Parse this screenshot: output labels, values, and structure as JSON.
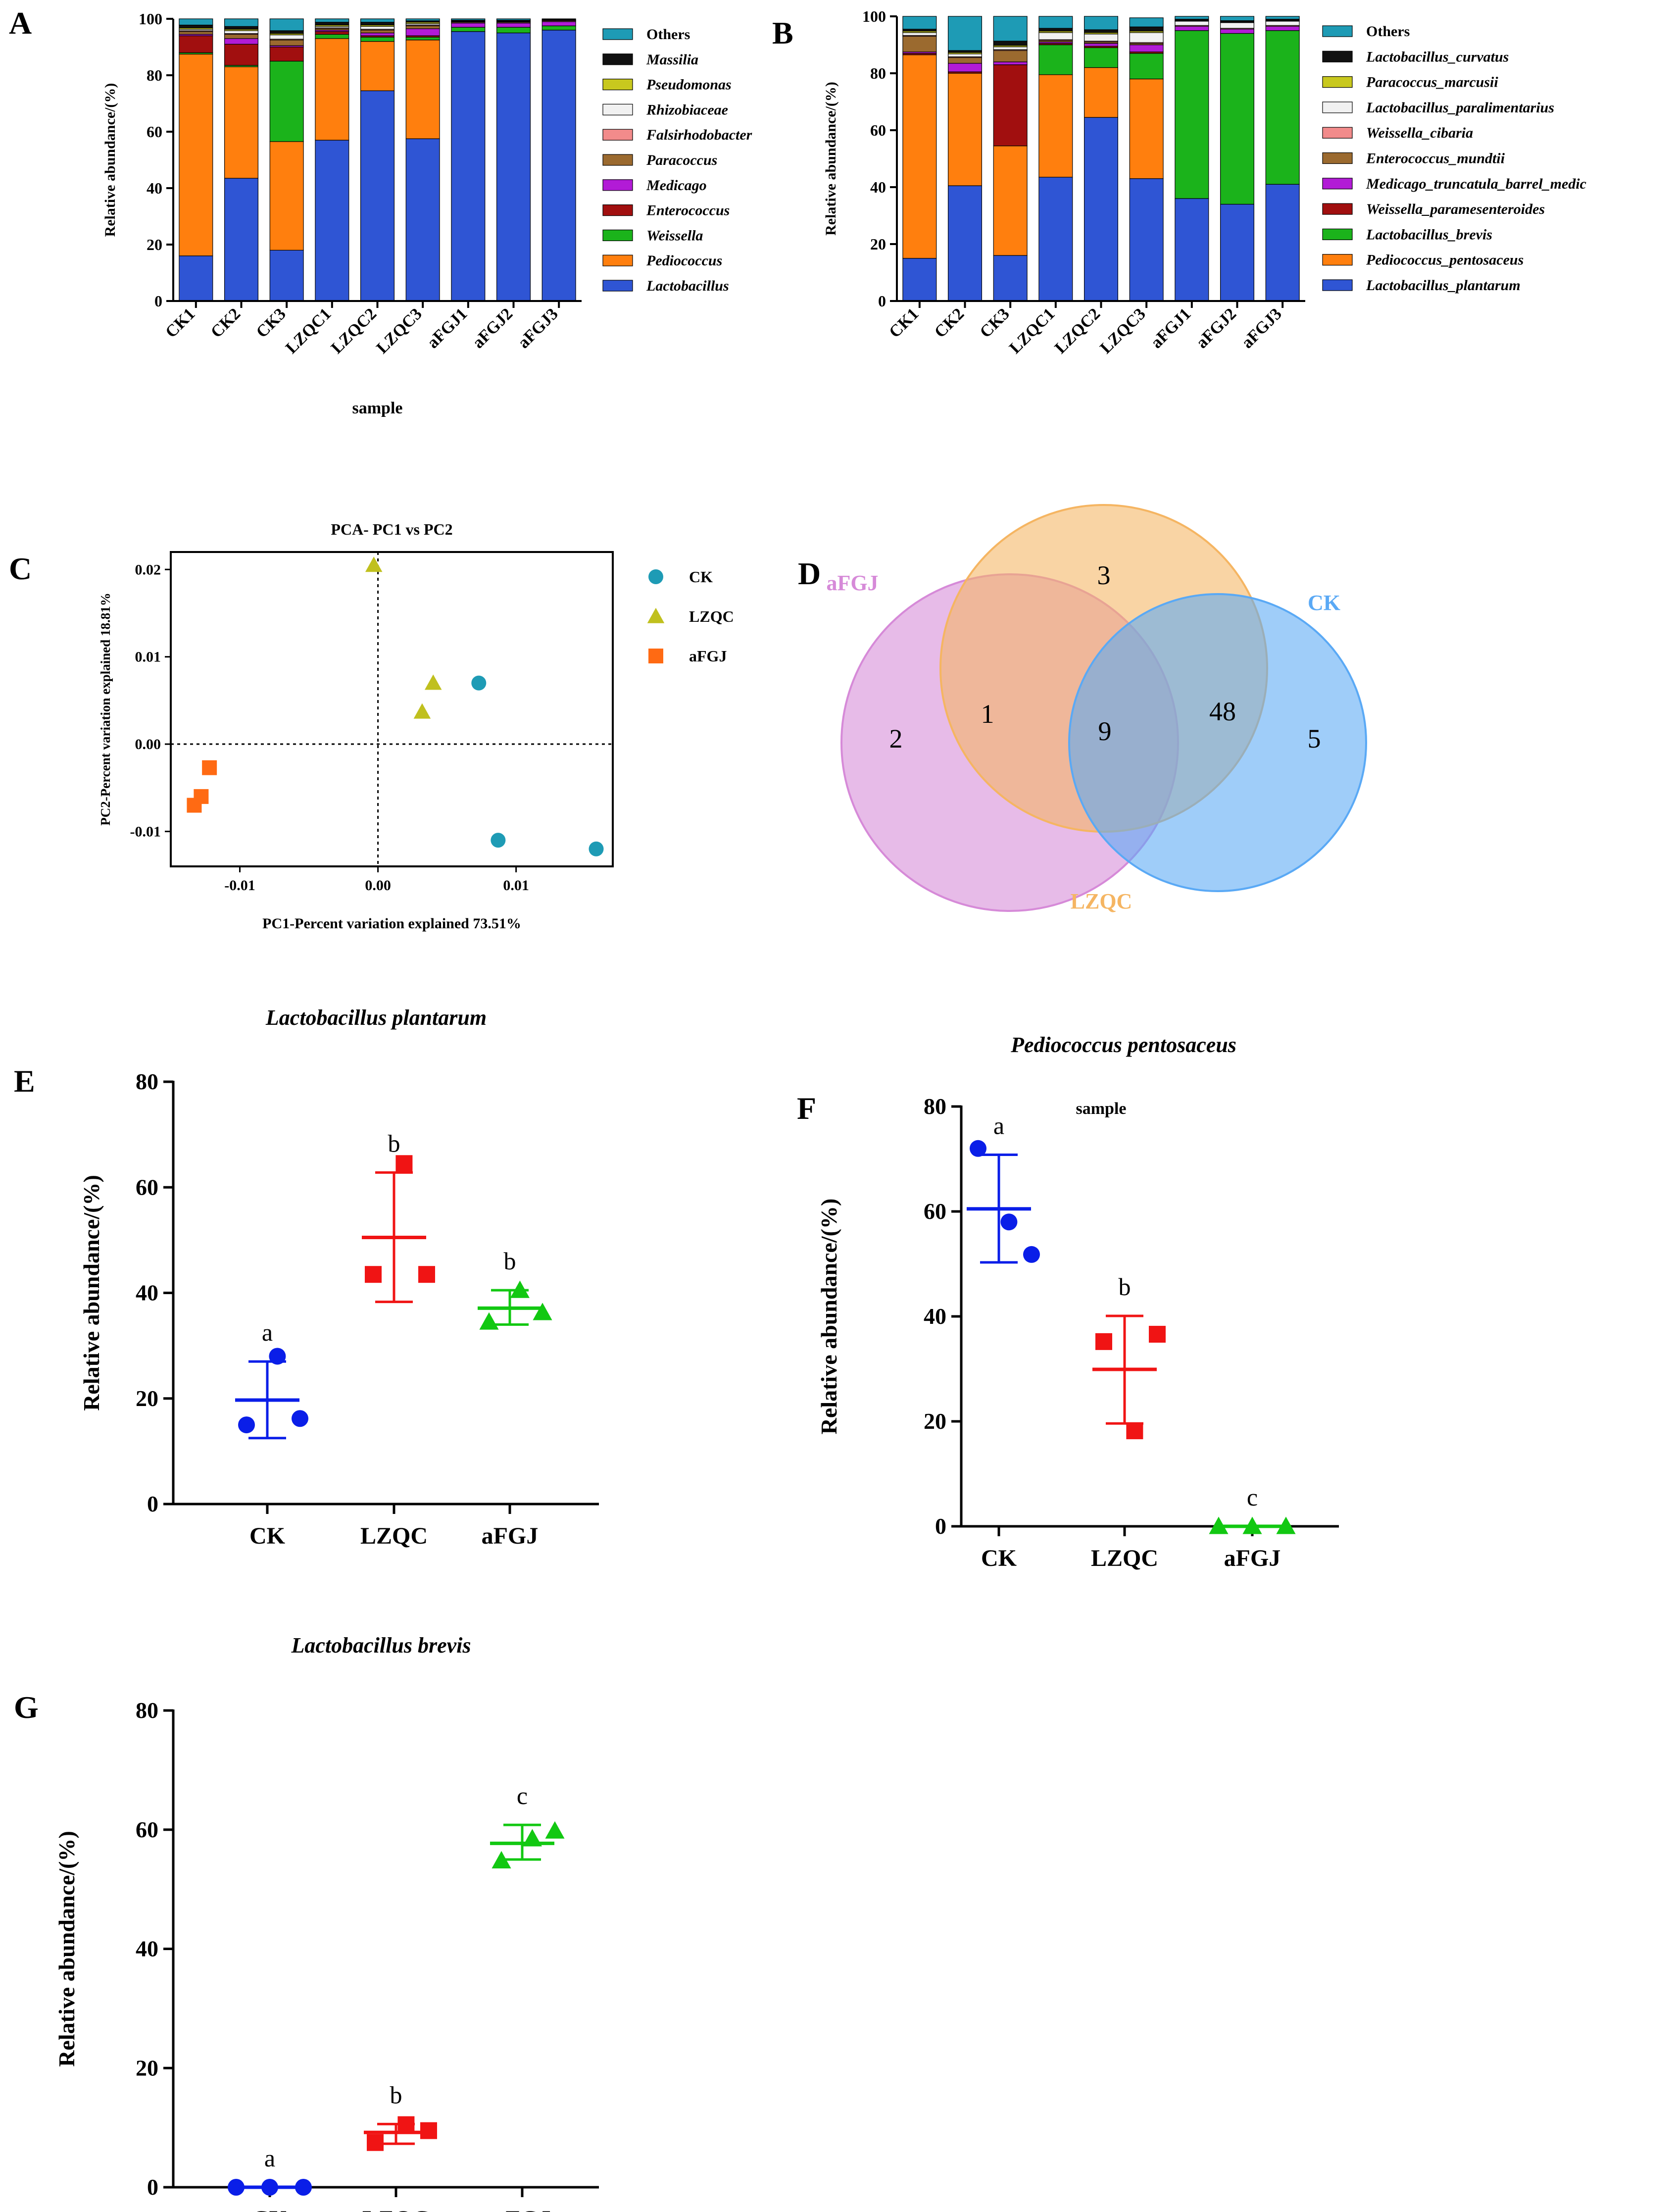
{
  "figure": {
    "colors": {
      "Lactobacillus": "#2f55d4",
      "Pediococcus": "#ff7f0e",
      "Weissella": "#1bb31b",
      "Enterococcus": "#a10f0f",
      "Medicago": "#b21bd6",
      "Paracoccus": "#9b6a2f",
      "Falsirhodobacter": "#f28b8b",
      "Rhizobiaceae": "#f1f1f1",
      "Pseudomonas": "#c8c81e",
      "Massilia": "#111111",
      "Others": "#1e9bb5",
      "teal": "#1e9bb5",
      "olive": "#c0c01e",
      "orange": "#ff6a13",
      "blue": "#0a1ee8",
      "red": "#f01414",
      "green": "#12c812",
      "venn_aFGJ": "#d68ad8",
      "venn_LZQC": "#f5b562",
      "venn_CK": "#5aa9f5"
    }
  },
  "chart_data": [
    {
      "panel": "A",
      "type": "bar",
      "stacked": true,
      "categories": [
        "CK1",
        "CK2",
        "CK3",
        "LZQC1",
        "LZQC2",
        "LZQC3",
        "aFGJ1",
        "aFGJ2",
        "aFGJ3"
      ],
      "xlabel": "sample",
      "ylabel": "Relative abundance/(%)",
      "ylim": [
        0,
        100
      ],
      "yticks": [
        "0",
        "20",
        "40",
        "60",
        "80",
        "100"
      ],
      "series": [
        {
          "name": "Lactobacillus",
          "color_key": "Lactobacillus",
          "values": [
            16,
            43.5,
            18,
            57,
            74.5,
            57.5,
            95.5,
            95,
            96
          ]
        },
        {
          "name": "Pediococcus",
          "color_key": "Pediococcus",
          "values": [
            71.5,
            39.5,
            38.5,
            36,
            17.5,
            35,
            0,
            0,
            0
          ]
        },
        {
          "name": "Weissella",
          "color_key": "Weissella",
          "values": [
            0.5,
            0.5,
            28.5,
            1.5,
            1.5,
            1,
            1.5,
            2,
            1.5
          ]
        },
        {
          "name": "Enterococcus",
          "color_key": "Enterococcus",
          "values": [
            6,
            7.5,
            5,
            1,
            0.5,
            0.5,
            0,
            0,
            0
          ]
        },
        {
          "name": "Medicago",
          "color_key": "Medicago",
          "values": [
            0.5,
            2,
            0.5,
            0.5,
            1,
            2.5,
            1.5,
            1.5,
            1.5
          ]
        },
        {
          "name": "Paracoccus",
          "color_key": "Paracoccus",
          "values": [
            1,
            1.5,
            2,
            0.5,
            1,
            1,
            0,
            0,
            0
          ]
        },
        {
          "name": "Falsirhodobacter",
          "color_key": "Falsirhodobacter",
          "values": [
            0.3,
            0.3,
            0.3,
            0.3,
            0.3,
            0.3,
            0.3,
            0.3,
            0.3
          ]
        },
        {
          "name": "Rhizobiaceae",
          "color_key": "Rhizobiaceae",
          "values": [
            0.5,
            1,
            1.5,
            0.5,
            1,
            0.5,
            0.2,
            0.2,
            0.2
          ]
        },
        {
          "name": "Pseudomonas",
          "color_key": "Pseudomonas",
          "values": [
            0.5,
            0.5,
            0.5,
            0.5,
            0.5,
            0.5,
            0.2,
            0.2,
            0.2
          ]
        },
        {
          "name": "Massilia",
          "color_key": "Massilia",
          "values": [
            1,
            1,
            1,
            1,
            1,
            0.5,
            0.3,
            0.3,
            0.3
          ]
        },
        {
          "name": "Others",
          "color_key": "Others",
          "values": [
            2.2,
            2.7,
            4.2,
            1.2,
            1.2,
            0.7,
            0.5,
            0.5,
            0
          ]
        }
      ],
      "legend": [
        "Others",
        "Massilia",
        "Pseudomonas",
        "Rhizobiaceae",
        "Falsirhodobacter",
        "Paracoccus",
        "Medicago",
        "Enterococcus",
        "Weissella",
        "Pediococcus",
        "Lactobacillus"
      ]
    },
    {
      "panel": "B",
      "type": "bar",
      "stacked": true,
      "categories": [
        "CK1",
        "CK2",
        "CK3",
        "LZQC1",
        "LZQC2",
        "LZQC3",
        "aFGJ1",
        "aFGJ2",
        "aFGJ3"
      ],
      "xlabel": "sample",
      "ylabel": "Relative abundance/(%)",
      "ylim": [
        0,
        100
      ],
      "yticks": [
        "0",
        "20",
        "40",
        "60",
        "80",
        "100"
      ],
      "series": [
        {
          "name": "Lactobacillus_plantarum",
          "color_key": "Lactobacillus",
          "values": [
            15,
            40.5,
            16,
            43.5,
            64.5,
            43,
            36,
            34,
            41
          ]
        },
        {
          "name": "Pediococcus_pentosaceus",
          "color_key": "Pediococcus",
          "values": [
            71.5,
            39.5,
            38.5,
            36,
            17.5,
            35,
            0,
            0,
            0
          ]
        },
        {
          "name": "Lactobacillus_brevis",
          "color_key": "Weissella",
          "values": [
            0,
            0,
            0,
            10.5,
            7,
            9,
            59,
            60,
            54
          ]
        },
        {
          "name": "Weissella_paramesenteroides",
          "color_key": "Enterococcus",
          "values": [
            0.5,
            0.5,
            28.5,
            0.5,
            0.5,
            0.5,
            0,
            0,
            0
          ]
        },
        {
          "name": "Medicago_truncatula_barrel_medic",
          "color_key": "Medicago",
          "values": [
            0.5,
            3,
            1,
            0.5,
            1,
            2.5,
            1.5,
            1.5,
            1.5
          ]
        },
        {
          "name": "Enterococcus_mundtii",
          "color_key": "Paracoccus",
          "values": [
            5.5,
            2,
            4,
            0.5,
            0.5,
            0.5,
            0,
            0,
            0
          ]
        },
        {
          "name": "Weissella_cibaria",
          "color_key": "Falsirhodobacter",
          "values": [
            0.3,
            0.3,
            0.3,
            0.3,
            0.3,
            0.3,
            0.3,
            0.3,
            0.3
          ]
        },
        {
          "name": "Lactobacillus_paralimentarius",
          "color_key": "Rhizobiaceae",
          "values": [
            1,
            1,
            1,
            2.5,
            2.5,
            3.5,
            1.5,
            2,
            1.5
          ]
        },
        {
          "name": "Paracoccus_marcusii",
          "color_key": "Pseudomonas",
          "values": [
            0.5,
            0.5,
            0.5,
            0.5,
            0.5,
            0.5,
            0.2,
            0.2,
            0.2
          ]
        },
        {
          "name": "Lactobacillus_curvatus",
          "color_key": "Massilia",
          "values": [
            0.7,
            0.7,
            1.5,
            1,
            1,
            1.5,
            0.5,
            0.5,
            0.5
          ]
        },
        {
          "name": "Others",
          "color_key": "Others",
          "values": [
            4.5,
            12,
            8.7,
            4.2,
            4.7,
            3.2,
            1,
            1.5,
            1
          ]
        }
      ],
      "legend": [
        "Others",
        "Lactobacillus_curvatus",
        "Paracoccus_marcusii",
        "Lactobacillus_paralimentarius",
        "Weissella_cibaria",
        "Enterococcus_mundtii",
        "Medicago_truncatula_barrel_medic",
        "Weissella_paramesenteroides",
        "Lactobacillus_brevis",
        "Pediococcus_pentosaceus",
        "Lactobacillus_plantarum"
      ]
    },
    {
      "panel": "C",
      "type": "scatter",
      "title": "PCA- PC1 vs PC2",
      "xlabel": "PC1-Percent variation explained 73.51%",
      "ylabel": "PC2-Percent variation explained 18.81%",
      "xlim": [
        -0.015,
        0.017
      ],
      "ylim": [
        -0.014,
        0.022
      ],
      "xticks": [
        {
          "v": -0.01,
          "label": "-0.01"
        },
        {
          "v": 0,
          "label": "0.00"
        },
        {
          "v": 0.01,
          "label": "0.01"
        }
      ],
      "yticks": [
        {
          "v": -0.01,
          "label": "-0.01"
        },
        {
          "v": 0,
          "label": "0.00"
        },
        {
          "v": 0.01,
          "label": "0.01"
        },
        {
          "v": 0.02,
          "label": "0.02"
        }
      ],
      "series": [
        {
          "name": "CK",
          "marker": "circle",
          "color_key": "teal",
          "points": [
            [
              0.0073,
              0.007
            ],
            [
              0.0087,
              -0.011
            ],
            [
              0.0158,
              -0.012
            ]
          ]
        },
        {
          "name": "LZQC",
          "marker": "triangle",
          "color_key": "olive",
          "points": [
            [
              -0.0003,
              0.0205
            ],
            [
              0.0032,
              0.0037
            ],
            [
              0.004,
              0.007
            ]
          ]
        },
        {
          "name": "aFGJ",
          "marker": "square",
          "color_key": "orange",
          "points": [
            [
              -0.0122,
              -0.0027
            ],
            [
              -0.0128,
              -0.006
            ],
            [
              -0.0133,
              -0.007
            ]
          ]
        }
      ]
    },
    {
      "panel": "D",
      "type": "venn",
      "sets": [
        {
          "name": "aFGJ",
          "color_key": "venn_aFGJ"
        },
        {
          "name": "LZQC",
          "color_key": "venn_LZQC"
        },
        {
          "name": "CK",
          "color_key": "venn_CK"
        }
      ],
      "regions": {
        "aFGJ_only": "2",
        "LZQC_only": "3",
        "CK_only": "5",
        "aFGJ_LZQC": "1",
        "LZQC_CK": "48",
        "all_three": "9"
      }
    },
    {
      "panel": "E",
      "type": "scatter",
      "title": "Lactobacillus plantarum",
      "ylabel": "Relative abundance/(%)",
      "categories": [
        "CK",
        "LZQC",
        "aFGJ"
      ],
      "ylim": [
        0,
        80
      ],
      "yticks": [
        "0",
        "20",
        "40",
        "60",
        "80"
      ],
      "groups": [
        {
          "name": "CK",
          "marker": "circle",
          "color_key": "blue",
          "points": [
            15,
            28,
            16.2
          ],
          "mean": 19.7,
          "sd_low": 12.5,
          "sd_high": 27,
          "letter": "a"
        },
        {
          "name": "LZQC",
          "marker": "square",
          "color_key": "red",
          "points": [
            43.5,
            64.5,
            43.5
          ],
          "mean": 50.5,
          "sd_low": 38.3,
          "sd_high": 62.8,
          "letter": "b"
        },
        {
          "name": "aFGJ",
          "marker": "triangle",
          "color_key": "green",
          "points": [
            34.5,
            40.5,
            36.3
          ],
          "mean": 37.1,
          "sd_low": 34,
          "sd_high": 40.5,
          "letter": "b"
        }
      ]
    },
    {
      "panel": "F",
      "type": "scatter",
      "title": "Pediococcus pentosaceus",
      "ylabel": "Relative abundance/(%)",
      "categories": [
        "CK",
        "LZQC",
        "aFGJ"
      ],
      "ylim": [
        0,
        80
      ],
      "yticks": [
        "0",
        "20",
        "40",
        "60",
        "80"
      ],
      "groups": [
        {
          "name": "CK",
          "marker": "circle",
          "color_key": "blue",
          "points": [
            72,
            58,
            51.8
          ],
          "mean": 60.5,
          "sd_low": 50.3,
          "sd_high": 70.8,
          "letter": "a"
        },
        {
          "name": "LZQC",
          "marker": "square",
          "color_key": "red",
          "points": [
            35.2,
            18.2,
            36.6
          ],
          "mean": 29.9,
          "sd_low": 19.6,
          "sd_high": 40.1,
          "letter": "b"
        },
        {
          "name": "aFGJ",
          "marker": "triangle",
          "color_key": "green",
          "points": [
            0,
            0,
            0
          ],
          "mean": 0,
          "sd_low": 0,
          "sd_high": 0,
          "letter": "c"
        }
      ]
    },
    {
      "panel": "G",
      "type": "scatter",
      "title": "Lactobacillus brevis",
      "ylabel": "Relative abundance/(%)",
      "categories": [
        "CK",
        "LZQC",
        "aFGJ"
      ],
      "ylim": [
        0,
        80
      ],
      "yticks": [
        "0",
        "20",
        "40",
        "60",
        "80"
      ],
      "groups": [
        {
          "name": "CK",
          "marker": "circle",
          "color_key": "blue",
          "points": [
            0,
            0,
            0
          ],
          "mean": 0,
          "sd_low": 0,
          "sd_high": 0,
          "letter": "a"
        },
        {
          "name": "LZQC",
          "marker": "square",
          "color_key": "red",
          "points": [
            7.5,
            10.5,
            9.5
          ],
          "mean": 9.2,
          "sd_low": 7.3,
          "sd_high": 10.6,
          "letter": "b"
        },
        {
          "name": "aFGJ",
          "marker": "triangle",
          "color_key": "green",
          "points": [
            54.8,
            58.5,
            59.8
          ],
          "mean": 57.7,
          "sd_low": 55,
          "sd_high": 60.8,
          "letter": "c"
        }
      ]
    }
  ]
}
